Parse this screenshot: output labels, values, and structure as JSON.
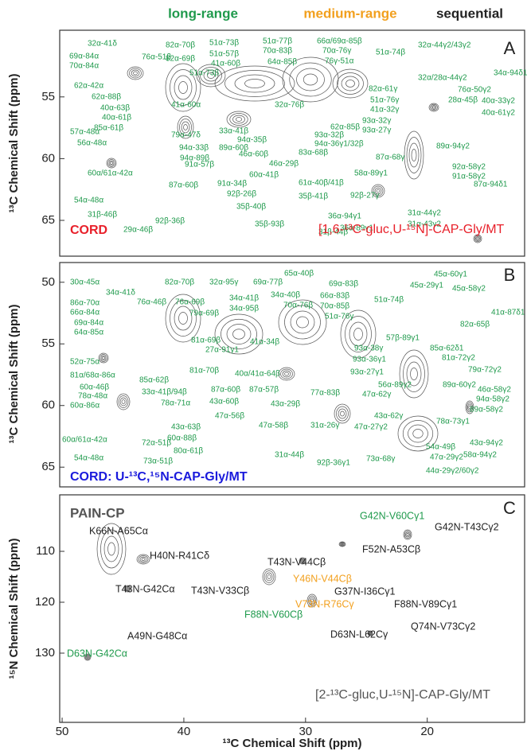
{
  "legend": [
    {
      "name": "long-range",
      "color": "#1f9a4c"
    },
    {
      "name": "medium-range",
      "color": "#f2a01e"
    },
    {
      "name": "sequential",
      "color": "#222222"
    }
  ],
  "chart_data": [
    {
      "type": "contour",
      "panel": "A",
      "method": "CORD",
      "method_color": "#e8202a",
      "sample": "[1,6-¹³C-gluc,U-¹⁵N]-CAP-Gly/MT",
      "sample_color": "#e8202a",
      "ylabel": "¹³C Chemical Shift (ppm)",
      "xlim": [
        50.2,
        12.0
      ],
      "ylim": [
        49.6,
        67.9
      ],
      "yticks": [
        55,
        60,
        65
      ],
      "annotations": {
        "long-range": [
          "32α-41δ",
          "69α-84α",
          "70α-84α",
          "76α-51β",
          "82α-70β",
          "82α-69β",
          "62α-42α",
          "62α-88β",
          "40α-63β",
          "40α-61β",
          "85α-61β",
          "57α-48α",
          "56α-48α",
          "51α-73β",
          "51α-57β",
          "41α-60β",
          "51α-73β",
          "51α-77β",
          "70α-83β",
          "64α-85β",
          "66α/69α-85β",
          "70α-76γ",
          "76γ-51α",
          "51α-74β",
          "32α-44γ2/43γ2",
          "34α-94δ1",
          "32α/28α-44γ2",
          "76α-50γ2",
          "28α-45β",
          "40α-33γ2",
          "40α-61γ2",
          "82α-61γ",
          "51α-76γ",
          "41α-32γ",
          "93α-32γ",
          "93α-27γ",
          "32α-76β",
          "41α-60α",
          "79α-47δ",
          "94α-33β",
          "94α-89β",
          "89α-60β",
          "33α-41β",
          "94α-35β",
          "62α-85β",
          "93α-32β",
          "94α-36γ1/32β",
          "83α-68β",
          "46α-60β",
          "46α-29β",
          "89α-94γ2",
          "92α-58γ2",
          "91α-58γ2",
          "87α-68γ",
          "87α-94δ1",
          "91α-57β",
          "87α-60β",
          "60α-41β",
          "61α-40β/41β",
          "91α-34β",
          "92β-26β",
          "35β-40β",
          "35β-41β",
          "92β-27γ",
          "58α-89γ1",
          "60α/61α-42α",
          "54α-48α",
          "31β-46β",
          "92β-36β",
          "35β-93β",
          "31β-44β",
          "36α-94γ1",
          "36α-89γ1",
          "31α-44γ2",
          "31α-43γ2",
          "29α-46β"
        ]
      }
    },
    {
      "type": "contour",
      "panel": "B",
      "method": "CORD: U-¹³C,¹⁵N-CAP-Gly/MT",
      "method_color": "#1a1adc",
      "ylabel": "¹³C Chemical Shift (ppm)",
      "xlim": [
        50.2,
        12.0
      ],
      "ylim": [
        48.4,
        66.6
      ],
      "yticks": [
        50,
        55,
        60,
        65
      ],
      "annotations": {
        "long-range": [
          "30α-45α",
          "34α-41δ",
          "82α-70β",
          "32α-95γ",
          "69α-77β",
          "65α-40β",
          "69α-83β",
          "45α-60γ1",
          "45α-29γ1",
          "45α-58γ2",
          "86α-70α",
          "66α-84α",
          "69α-84α",
          "64α-85α",
          "76α-46β",
          "76α-69β",
          "79α-69β",
          "34α-41β",
          "34α-95β",
          "34α-40β",
          "70α-76β",
          "66α-83β",
          "70α-85β",
          "51α-74β",
          "41α-87δ1",
          "82α-65β",
          "51α-76γ",
          "81α-69β",
          "41α-34β",
          "27α-91γ1",
          "81α-70β",
          "52α-75α",
          "81α/68α-86α",
          "60α-46β",
          "78α-48α",
          "60α-86α",
          "85α-62β",
          "33α-41β/94β",
          "78α-71α",
          "40α/41α-64β",
          "87α-60β",
          "87α-57β",
          "43α-29β",
          "43α-60β",
          "47α-56β",
          "43α-63β",
          "60α-88β",
          "80α-61β",
          "72α-51β",
          "73α-51β",
          "60α/61α-42α",
          "54α-48α",
          "57β-89γ1",
          "93α-38γ",
          "85α-62δ1",
          "81α-72γ2",
          "79α-72γ2",
          "89α-60γ2",
          "46α-58γ2",
          "94α-58γ2",
          "89α-58γ2",
          "78α-73γ1",
          "93α-36γ1",
          "56α-89γ2",
          "47α-62γ",
          "77α-83β",
          "93α-27γ1",
          "47α-58β",
          "31α-26γ",
          "43α-62γ",
          "47α-27γ2",
          "31α-44β",
          "92β-36γ1",
          "73α-68γ",
          "43α-94γ2",
          "58α-94γ2",
          "54α-49β",
          "47α-29γ2",
          "44α-29γ2/60γ2"
        ]
      }
    },
    {
      "type": "contour",
      "panel": "C",
      "method": "PAIN-CP",
      "method_color": "#555555",
      "sample": "[2-¹³C-gluc,U-¹⁵N]-CAP-Gly/MT",
      "sample_color": "#555555",
      "ylabel": "¹⁵N Chemical Shift (ppm)",
      "xlabel": "¹³C Chemical Shift (ppm)",
      "xlim": [
        50.2,
        12.0
      ],
      "ylim": [
        98.9,
        143.6
      ],
      "xticks": [
        50,
        40,
        30,
        20
      ],
      "yticks": [
        110,
        120,
        130
      ],
      "annotations": {
        "long-range": [
          "D63N-G42Cα",
          "F88N-V60Cβ",
          "G42N-V60Cγ1"
        ],
        "medium-range": [
          "Y46N-V44Cβ",
          "V73N-R76Cγ"
        ],
        "sequential": [
          "K66N-A65Cα",
          "H40N-R41Cδ",
          "T43N-G42Cα",
          "T43N-V33Cβ",
          "A49N-G48Cα",
          "T43N-V44Cβ",
          "G37N-I36Cγ1",
          "F88N-V89Cγ1",
          "D63N-L62Cγ",
          "Q74N-V73Cγ2",
          "G42N-T43Cγ2",
          "F52N-A53Cβ"
        ]
      }
    }
  ]
}
